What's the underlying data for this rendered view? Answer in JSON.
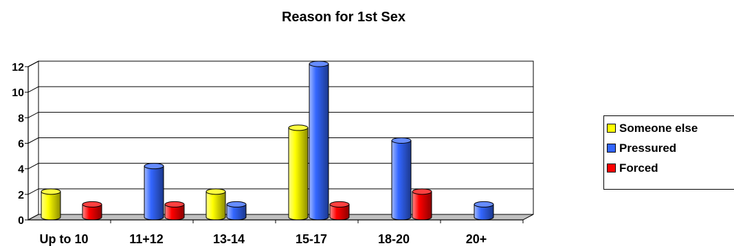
{
  "chart_data": {
    "type": "bar",
    "title": "Reason for 1st Sex",
    "categories": [
      "Up to 10",
      "11+12",
      "13-14",
      "15-17",
      "18-20",
      "20+"
    ],
    "series": [
      {
        "name": "Someone else",
        "color": "#ffff00",
        "values": [
          2,
          0,
          2,
          7,
          0,
          0
        ]
      },
      {
        "name": "Pressured",
        "color": "#3366ff",
        "values": [
          0,
          4,
          1,
          12,
          6,
          1
        ]
      },
      {
        "name": "Forced",
        "color": "#ff0000",
        "values": [
          1,
          1,
          0,
          1,
          2,
          0
        ]
      }
    ],
    "ylim": [
      0,
      12
    ],
    "yticks": [
      0,
      2,
      4,
      6,
      8,
      10,
      12
    ],
    "grid": true,
    "legend_position": "right",
    "style": "3d-cylinder"
  }
}
